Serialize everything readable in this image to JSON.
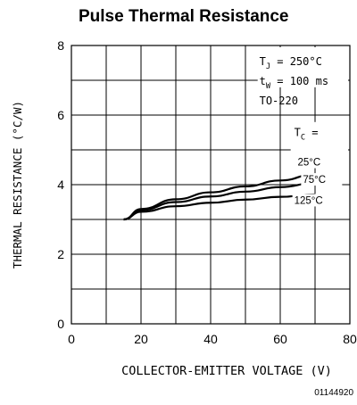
{
  "chart_data": {
    "type": "line",
    "title": "Pulse Thermal Resistance",
    "xlabel": "COLLECTOR-EMITTER VOLTAGE (V)",
    "ylabel": "THERMAL RESISTANCE (°C/W)",
    "xlim": [
      0,
      80
    ],
    "ylim": [
      0,
      8
    ],
    "x_ticks": [
      "0",
      "20",
      "40",
      "60",
      "80"
    ],
    "y_ticks": [
      "0",
      "2",
      "4",
      "6",
      "8"
    ],
    "grid": true,
    "conditions": [
      "T_J = 250°C",
      "t_W = 100 ms",
      "TO-220"
    ],
    "tc_label": "T_C =",
    "series": [
      {
        "name": "25°C",
        "x": [
          15,
          20,
          30,
          40,
          50,
          60,
          70
        ],
        "y": [
          3.0,
          3.3,
          3.58,
          3.78,
          3.95,
          4.12,
          4.3
        ]
      },
      {
        "name": "75°C",
        "x": [
          15,
          20,
          30,
          40,
          50,
          60,
          70
        ],
        "y": [
          3.0,
          3.27,
          3.5,
          3.66,
          3.8,
          3.93,
          4.05
        ]
      },
      {
        "name": "125°C",
        "x": [
          15,
          20,
          30,
          40,
          50,
          60,
          70
        ],
        "y": [
          3.0,
          3.22,
          3.38,
          3.48,
          3.57,
          3.65,
          3.72
        ]
      }
    ],
    "figure_id": "01144920"
  }
}
